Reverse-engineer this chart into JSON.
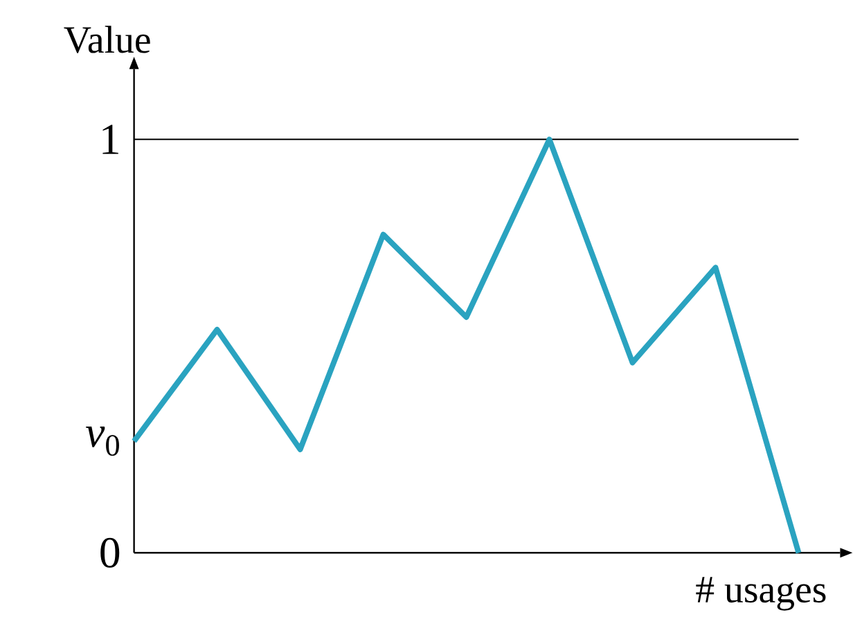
{
  "chart_data": {
    "type": "line",
    "xlabel": "# usages",
    "ylabel": "Value",
    "categories": [
      null,
      null,
      null,
      null,
      null,
      null,
      null,
      null,
      null
    ],
    "ylim": [
      0,
      1.17
    ],
    "yticks": [
      {
        "value": 0,
        "label": "0"
      },
      {
        "value": 0.27,
        "label": "*v*$_{0}$"
      },
      {
        "value": 1,
        "label": "1"
      }
    ],
    "tick_labels": "y",
    "line_style": "solid",
    "ref_lines": [
      {
        "axis": "y",
        "value": 1,
        "color": "#000000"
      }
    ],
    "series": [
      {
        "color": "#2aa3c0",
        "values": [
          0.27,
          0.54,
          0.25,
          0.77,
          0.57,
          1.0,
          0.46,
          0.69,
          0
        ]
      }
    ]
  }
}
